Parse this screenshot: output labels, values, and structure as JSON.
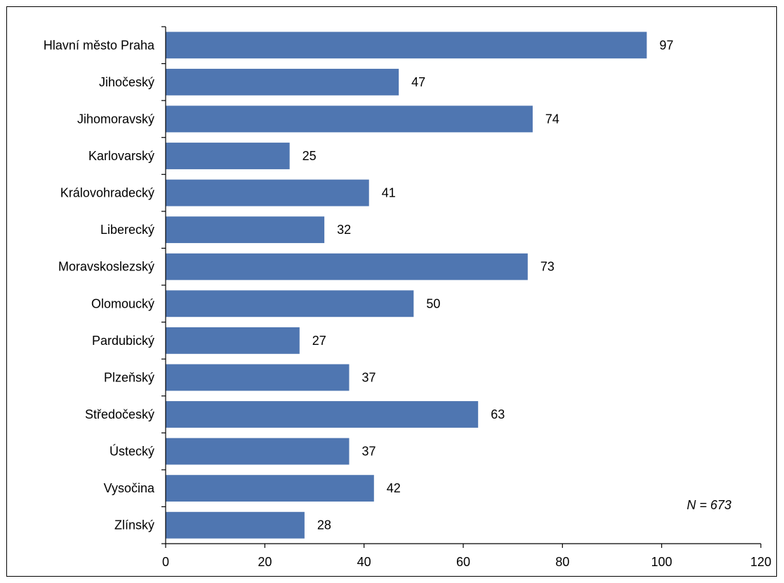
{
  "chart_data": {
    "type": "bar",
    "orientation": "horizontal",
    "categories": [
      "Hlavní město Praha",
      "Jihočeský",
      "Jihomoravský",
      "Karlovarský",
      "Královohradecký",
      "Liberecký",
      "Moravskoslezský",
      "Olomoucký",
      "Pardubický",
      "Plzeňský",
      "Středočeský",
      "Ústecký",
      "Vysočina",
      "Zlínský"
    ],
    "values": [
      97,
      47,
      74,
      25,
      41,
      32,
      73,
      50,
      27,
      37,
      63,
      37,
      42,
      28
    ],
    "value_labels": [
      "97",
      "47",
      "74",
      "25",
      "41",
      "32",
      "73",
      "50",
      "27",
      "37",
      "63",
      "37",
      "42",
      "28"
    ],
    "xlim": [
      0,
      120
    ],
    "x_ticks": [
      0,
      20,
      40,
      60,
      80,
      100,
      120
    ],
    "x_tick_labels": [
      "0",
      "20",
      "40",
      "60",
      "80",
      "100",
      "120"
    ],
    "grid": false,
    "legend": "none",
    "annotation": "N = 673",
    "bar_color": "#4F76B1"
  }
}
